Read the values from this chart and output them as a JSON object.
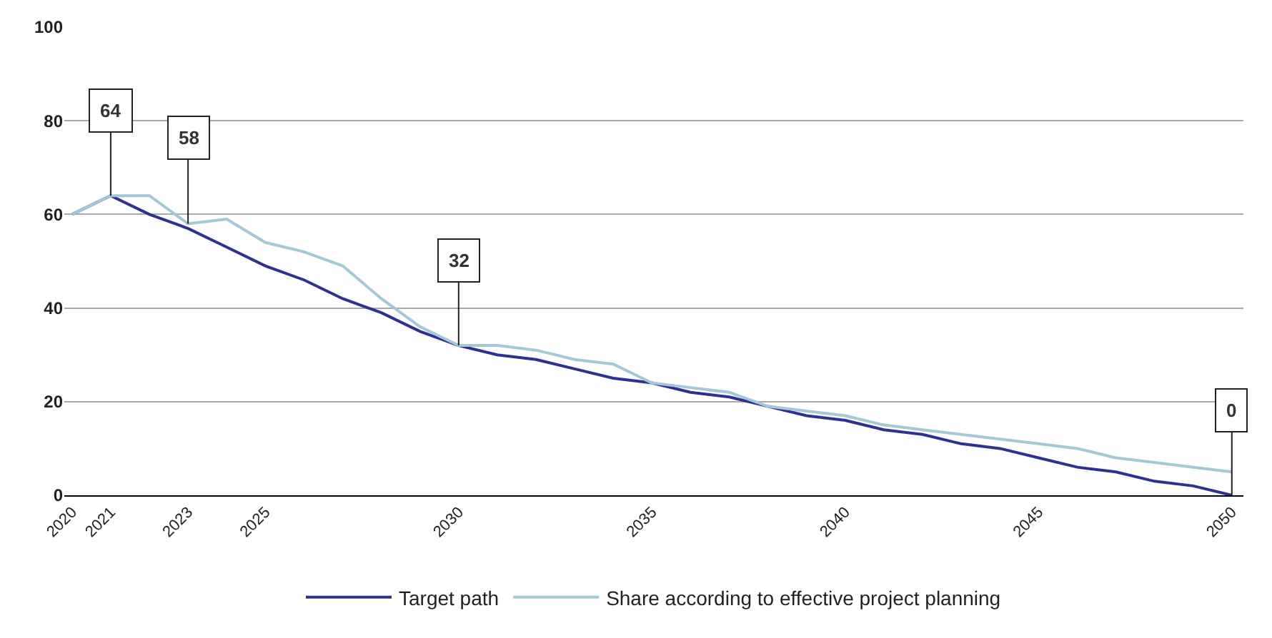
{
  "chart_data": {
    "type": "line",
    "x": [
      2020,
      2021,
      2022,
      2023,
      2024,
      2025,
      2026,
      2027,
      2028,
      2029,
      2030,
      2031,
      2032,
      2033,
      2034,
      2035,
      2036,
      2037,
      2038,
      2039,
      2040,
      2041,
      2042,
      2043,
      2044,
      2045,
      2046,
      2047,
      2048,
      2049,
      2050
    ],
    "series": [
      {
        "name": "Target path",
        "color": "#2e3192",
        "values": [
          60,
          64,
          60,
          57,
          53,
          49,
          46,
          42,
          39,
          35,
          32,
          30,
          29,
          27,
          25,
          24,
          22,
          21,
          19,
          17,
          16,
          14,
          13,
          11,
          10,
          8,
          6,
          5,
          3,
          2,
          0
        ]
      },
      {
        "name": "Share according to effective project planning",
        "color": "#a3c9d9",
        "values": [
          60,
          64,
          64,
          58,
          59,
          54,
          52,
          49,
          42,
          36,
          32,
          32,
          31,
          29,
          28,
          24,
          23,
          22,
          19,
          18,
          17,
          15,
          14,
          13,
          12,
          11,
          10,
          8,
          7,
          6,
          5
        ]
      }
    ],
    "xlim": [
      2019.8,
      2050.3
    ],
    "xticks": [
      2020,
      2021,
      2023,
      2025,
      2030,
      2035,
      2040,
      2045,
      2050
    ],
    "ylim": [
      0,
      100
    ],
    "yticks": [
      0,
      20,
      40,
      60,
      80,
      100
    ],
    "grid": "y",
    "legend": "bottom",
    "marker": "none",
    "line_style": "solid",
    "annotations": [
      {
        "text": "64",
        "x": 2021,
        "y": 64
      },
      {
        "text": "58",
        "x": 2023,
        "y": 58
      },
      {
        "text": "32",
        "x": 2030,
        "y": 32
      },
      {
        "text": "0",
        "x": 2050,
        "y": 0
      }
    ]
  }
}
